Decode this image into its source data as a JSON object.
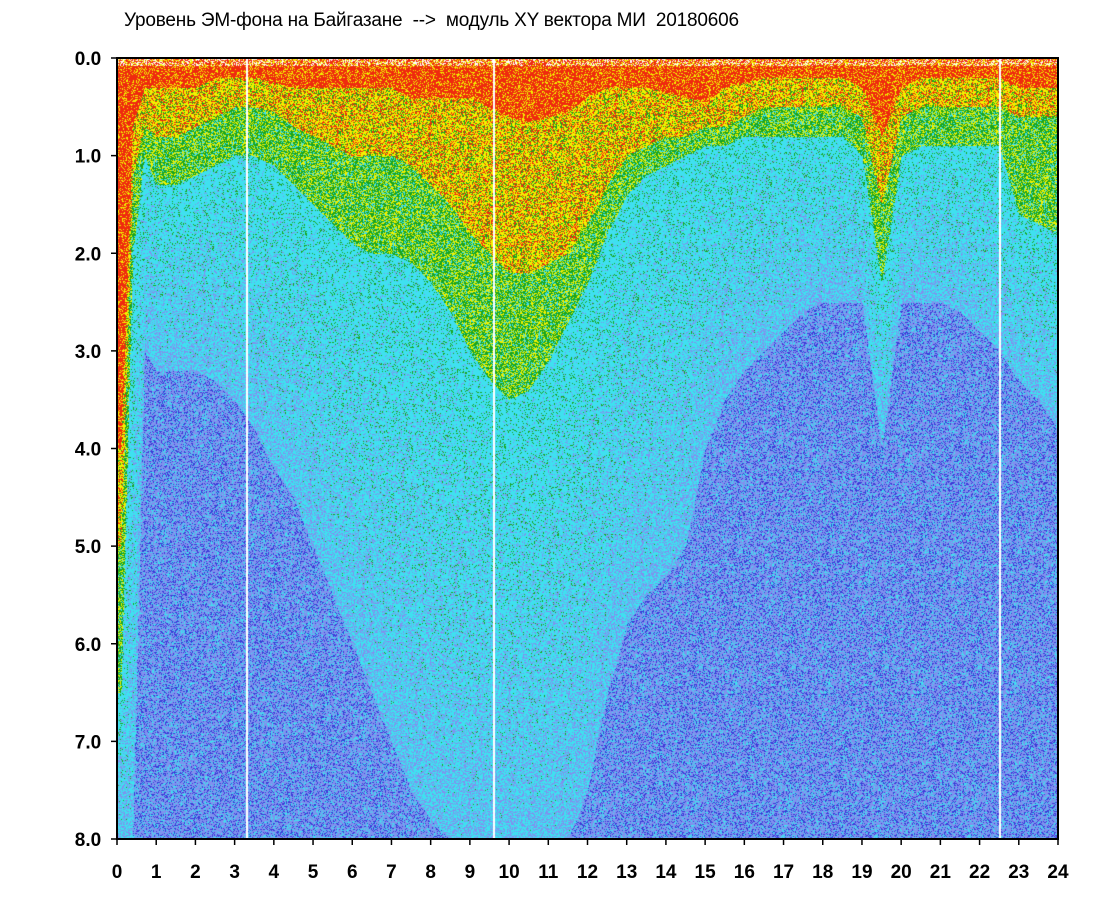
{
  "chart_data": {
    "type": "heatmap",
    "title": "Уровень ЭМ-фона на Байгазане  -->  модуль XY вектора МИ  20180606",
    "xlabel": "",
    "ylabel": "",
    "xlim": [
      0,
      24
    ],
    "ylim": [
      0.0,
      8.0
    ],
    "y_inverted": true,
    "grid": false,
    "x_ticks": [
      "0",
      "1",
      "2",
      "3",
      "4",
      "5",
      "6",
      "7",
      "8",
      "9",
      "10",
      "11",
      "12",
      "13",
      "14",
      "15",
      "16",
      "17",
      "18",
      "19",
      "20",
      "21",
      "22",
      "23",
      "24"
    ],
    "y_ticks": [
      "0.0",
      "1.0",
      "2.0",
      "3.0",
      "4.0",
      "5.0",
      "6.0",
      "7.0",
      "8.0"
    ],
    "color_levels": [
      "#3a3ad8",
      "#7f92ee",
      "#3fe0f0",
      "#19a51f",
      "#f2f200",
      "#ef2a0e"
    ],
    "color_boundary_profile": {
      "hours": [
        0.1,
        0.4,
        0.7,
        1.0,
        1.5,
        2.0,
        2.5,
        3.0,
        3.5,
        4.0,
        4.5,
        5.0,
        5.5,
        6.0,
        6.5,
        7.0,
        7.5,
        8.0,
        8.5,
        9.0,
        9.5,
        10.0,
        10.5,
        11.0,
        11.5,
        12.0,
        12.5,
        13.0,
        13.5,
        14.0,
        14.5,
        15.0,
        15.5,
        16.0,
        16.5,
        17.0,
        17.5,
        18.0,
        18.5,
        19.0,
        19.5,
        20.0,
        20.5,
        21.0,
        21.5,
        22.0,
        22.5,
        23.0,
        23.5,
        24.0
      ],
      "red_to_yellow": [
        4.0,
        0.7,
        0.3,
        0.3,
        0.3,
        0.3,
        0.2,
        0.2,
        0.2,
        0.25,
        0.3,
        0.3,
        0.3,
        0.3,
        0.3,
        0.3,
        0.4,
        0.4,
        0.4,
        0.4,
        0.5,
        0.6,
        0.65,
        0.6,
        0.55,
        0.4,
        0.3,
        0.3,
        0.3,
        0.35,
        0.4,
        0.45,
        0.3,
        0.25,
        0.2,
        0.2,
        0.2,
        0.2,
        0.2,
        0.3,
        0.8,
        0.3,
        0.2,
        0.2,
        0.2,
        0.2,
        0.2,
        0.3,
        0.3,
        0.3
      ],
      "yellow_to_green": [
        5.0,
        1.2,
        0.7,
        0.8,
        0.8,
        0.7,
        0.6,
        0.5,
        0.5,
        0.55,
        0.7,
        0.8,
        0.9,
        1.0,
        1.0,
        1.0,
        1.1,
        1.3,
        1.5,
        1.8,
        2.0,
        2.2,
        2.2,
        2.1,
        2.0,
        1.7,
        1.3,
        1.0,
        0.9,
        0.8,
        0.8,
        0.7,
        0.7,
        0.6,
        0.5,
        0.5,
        0.5,
        0.5,
        0.5,
        0.6,
        1.5,
        0.6,
        0.5,
        0.5,
        0.5,
        0.5,
        0.5,
        0.6,
        0.6,
        0.6
      ],
      "green_to_cyan": [
        6.5,
        2.0,
        1.0,
        1.3,
        1.3,
        1.2,
        1.1,
        1.0,
        1.0,
        1.1,
        1.3,
        1.5,
        1.7,
        1.9,
        2.0,
        2.0,
        2.1,
        2.3,
        2.6,
        3.0,
        3.3,
        3.5,
        3.4,
        3.1,
        2.7,
        2.3,
        1.8,
        1.4,
        1.2,
        1.1,
        1.0,
        0.9,
        0.9,
        0.8,
        0.8,
        0.8,
        0.8,
        0.8,
        0.8,
        1.0,
        2.3,
        1.0,
        0.9,
        0.9,
        0.9,
        0.9,
        0.9,
        1.6,
        1.7,
        1.8
      ],
      "cyan_to_blue": [
        8.0,
        8.0,
        3.0,
        3.2,
        3.2,
        3.2,
        3.3,
        3.5,
        3.8,
        4.2,
        4.5,
        5.0,
        5.5,
        6.0,
        6.5,
        7.0,
        7.5,
        7.8,
        8.0,
        8.0,
        8.0,
        8.0,
        8.0,
        8.0,
        8.0,
        7.5,
        6.5,
        5.8,
        5.5,
        5.3,
        5.0,
        4.0,
        3.5,
        3.2,
        3.0,
        2.8,
        2.6,
        2.5,
        2.5,
        2.5,
        4.0,
        2.5,
        2.5,
        2.5,
        2.6,
        2.8,
        3.0,
        3.3,
        3.5,
        3.8
      ]
    },
    "white_gap_hours": [
      3.3,
      9.6,
      22.5
    ]
  }
}
